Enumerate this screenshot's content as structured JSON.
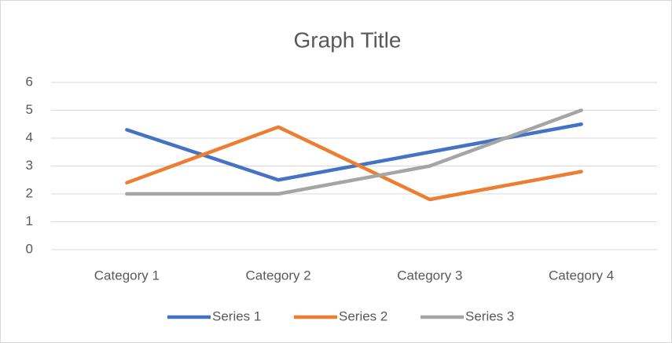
{
  "chart_data": {
    "type": "line",
    "title": "Graph Title",
    "categories": [
      "Category 1",
      "Category 2",
      "Category 3",
      "Category 4"
    ],
    "series": [
      {
        "name": "Series 1",
        "color": "#4472c4",
        "values": [
          4.3,
          2.5,
          3.5,
          4.5
        ]
      },
      {
        "name": "Series 2",
        "color": "#ed7d31",
        "values": [
          2.4,
          4.4,
          1.8,
          2.8
        ]
      },
      {
        "name": "Series 3",
        "color": "#a5a5a5",
        "values": [
          2,
          2,
          3,
          5
        ]
      }
    ],
    "ylim": [
      0,
      6
    ],
    "yticks": [
      0,
      1,
      2,
      3,
      4,
      5,
      6
    ],
    "grid": true,
    "legend": "bottom"
  }
}
